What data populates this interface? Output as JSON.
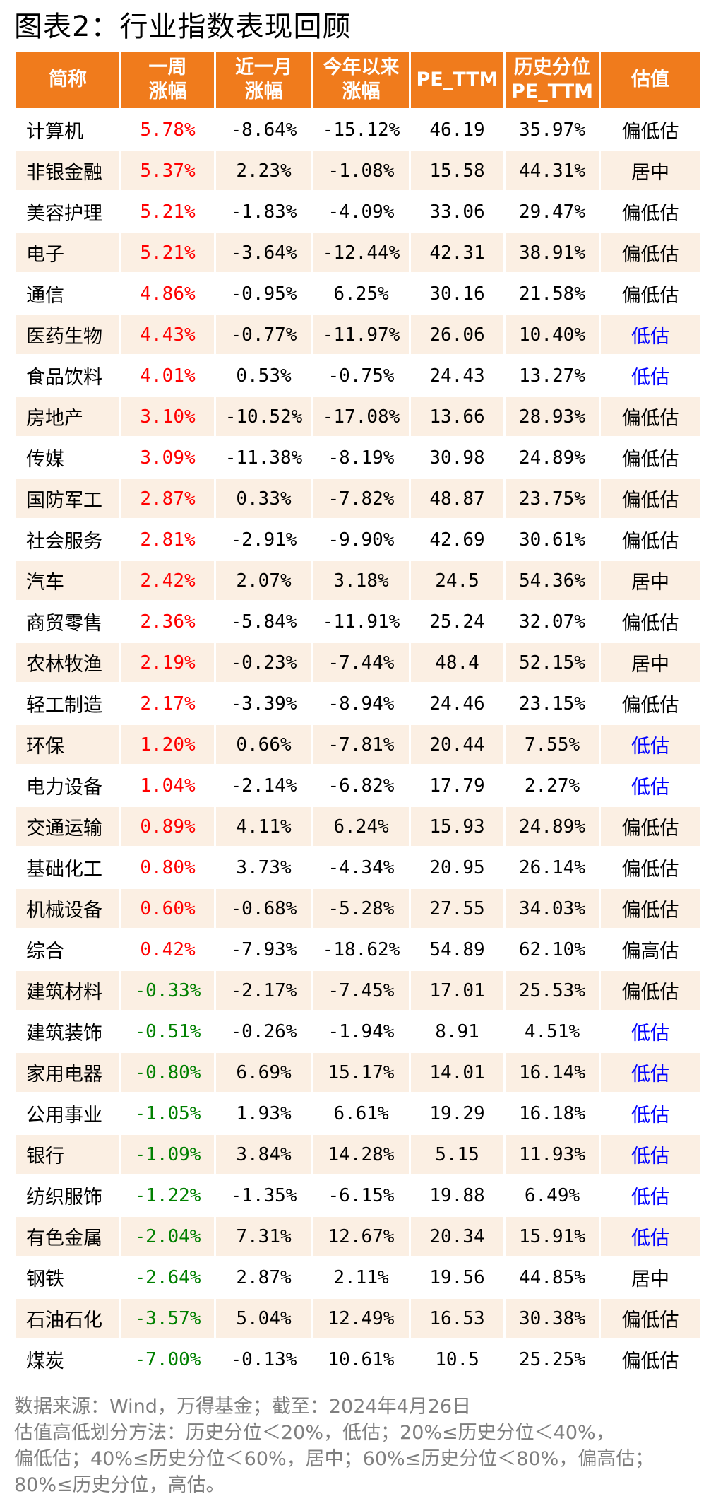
{
  "title": "图表2：行业指数表现回顾",
  "table": {
    "headers": [
      [
        "简称"
      ],
      [
        "一周",
        "涨幅"
      ],
      [
        "近一月",
        "涨幅"
      ],
      [
        "今年以来",
        "涨幅"
      ],
      [
        "PE_TTM"
      ],
      [
        "历史分位",
        "PE_TTM"
      ],
      [
        "估值"
      ]
    ],
    "rows": [
      {
        "name": "计算机",
        "week": "5.78%",
        "month": "-8.64%",
        "ytd": "-15.12%",
        "pe": "46.19",
        "pct": "35.97%",
        "val": "偏低估",
        "dir": "pos",
        "valcolor": "black"
      },
      {
        "name": "非银金融",
        "week": "5.37%",
        "month": "2.23%",
        "ytd": "-1.08%",
        "pe": "15.58",
        "pct": "44.31%",
        "val": "居中",
        "dir": "pos",
        "valcolor": "black"
      },
      {
        "name": "美容护理",
        "week": "5.21%",
        "month": "-1.83%",
        "ytd": "-4.09%",
        "pe": "33.06",
        "pct": "29.47%",
        "val": "偏低估",
        "dir": "pos",
        "valcolor": "black"
      },
      {
        "name": "电子",
        "week": "5.21%",
        "month": "-3.64%",
        "ytd": "-12.44%",
        "pe": "42.31",
        "pct": "38.91%",
        "val": "偏低估",
        "dir": "pos",
        "valcolor": "black"
      },
      {
        "name": "通信",
        "week": "4.86%",
        "month": "-0.95%",
        "ytd": "6.25%",
        "pe": "30.16",
        "pct": "21.58%",
        "val": "偏低估",
        "dir": "pos",
        "valcolor": "black"
      },
      {
        "name": "医药生物",
        "week": "4.43%",
        "month": "-0.77%",
        "ytd": "-11.97%",
        "pe": "26.06",
        "pct": "10.40%",
        "val": "低估",
        "dir": "pos",
        "valcolor": "blue"
      },
      {
        "name": "食品饮料",
        "week": "4.01%",
        "month": "0.53%",
        "ytd": "-0.75%",
        "pe": "24.43",
        "pct": "13.27%",
        "val": "低估",
        "dir": "pos",
        "valcolor": "blue"
      },
      {
        "name": "房地产",
        "week": "3.10%",
        "month": "-10.52%",
        "ytd": "-17.08%",
        "pe": "13.66",
        "pct": "28.93%",
        "val": "偏低估",
        "dir": "pos",
        "valcolor": "black"
      },
      {
        "name": "传媒",
        "week": "3.09%",
        "month": "-11.38%",
        "ytd": "-8.19%",
        "pe": "30.98",
        "pct": "24.89%",
        "val": "偏低估",
        "dir": "pos",
        "valcolor": "black"
      },
      {
        "name": "国防军工",
        "week": "2.87%",
        "month": "0.33%",
        "ytd": "-7.82%",
        "pe": "48.87",
        "pct": "23.75%",
        "val": "偏低估",
        "dir": "pos",
        "valcolor": "black"
      },
      {
        "name": "社会服务",
        "week": "2.81%",
        "month": "-2.91%",
        "ytd": "-9.90%",
        "pe": "42.69",
        "pct": "30.61%",
        "val": "偏低估",
        "dir": "pos",
        "valcolor": "black"
      },
      {
        "name": "汽车",
        "week": "2.42%",
        "month": "2.07%",
        "ytd": "3.18%",
        "pe": "24.5",
        "pct": "54.36%",
        "val": "居中",
        "dir": "pos",
        "valcolor": "black"
      },
      {
        "name": "商贸零售",
        "week": "2.36%",
        "month": "-5.84%",
        "ytd": "-11.91%",
        "pe": "25.24",
        "pct": "32.07%",
        "val": "偏低估",
        "dir": "pos",
        "valcolor": "black"
      },
      {
        "name": "农林牧渔",
        "week": "2.19%",
        "month": "-0.23%",
        "ytd": "-7.44%",
        "pe": "48.4",
        "pct": "52.15%",
        "val": "居中",
        "dir": "pos",
        "valcolor": "black"
      },
      {
        "name": "轻工制造",
        "week": "2.17%",
        "month": "-3.39%",
        "ytd": "-8.94%",
        "pe": "24.46",
        "pct": "23.15%",
        "val": "偏低估",
        "dir": "pos",
        "valcolor": "black"
      },
      {
        "name": "环保",
        "week": "1.20%",
        "month": "0.66%",
        "ytd": "-7.81%",
        "pe": "20.44",
        "pct": "7.55%",
        "val": "低估",
        "dir": "pos",
        "valcolor": "blue"
      },
      {
        "name": "电力设备",
        "week": "1.04%",
        "month": "-2.14%",
        "ytd": "-6.82%",
        "pe": "17.79",
        "pct": "2.27%",
        "val": "低估",
        "dir": "pos",
        "valcolor": "blue"
      },
      {
        "name": "交通运输",
        "week": "0.89%",
        "month": "4.11%",
        "ytd": "6.24%",
        "pe": "15.93",
        "pct": "24.89%",
        "val": "偏低估",
        "dir": "pos",
        "valcolor": "black"
      },
      {
        "name": "基础化工",
        "week": "0.80%",
        "month": "3.73%",
        "ytd": "-4.34%",
        "pe": "20.95",
        "pct": "26.14%",
        "val": "偏低估",
        "dir": "pos",
        "valcolor": "black"
      },
      {
        "name": "机械设备",
        "week": "0.60%",
        "month": "-0.68%",
        "ytd": "-5.28%",
        "pe": "27.55",
        "pct": "34.03%",
        "val": "偏低估",
        "dir": "pos",
        "valcolor": "black"
      },
      {
        "name": "综合",
        "week": "0.42%",
        "month": "-7.93%",
        "ytd": "-18.62%",
        "pe": "54.89",
        "pct": "62.10%",
        "val": "偏高估",
        "dir": "pos",
        "valcolor": "black"
      },
      {
        "name": "建筑材料",
        "week": "-0.33%",
        "month": "-2.17%",
        "ytd": "-7.45%",
        "pe": "17.01",
        "pct": "25.53%",
        "val": "偏低估",
        "dir": "neg",
        "valcolor": "black"
      },
      {
        "name": "建筑装饰",
        "week": "-0.51%",
        "month": "-0.26%",
        "ytd": "-1.94%",
        "pe": "8.91",
        "pct": "4.51%",
        "val": "低估",
        "dir": "neg",
        "valcolor": "blue"
      },
      {
        "name": "家用电器",
        "week": "-0.80%",
        "month": "6.69%",
        "ytd": "15.17%",
        "pe": "14.01",
        "pct": "16.14%",
        "val": "低估",
        "dir": "neg",
        "valcolor": "blue"
      },
      {
        "name": "公用事业",
        "week": "-1.05%",
        "month": "1.93%",
        "ytd": "6.61%",
        "pe": "19.29",
        "pct": "16.18%",
        "val": "低估",
        "dir": "neg",
        "valcolor": "blue"
      },
      {
        "name": "银行",
        "week": "-1.09%",
        "month": "3.84%",
        "ytd": "14.28%",
        "pe": "5.15",
        "pct": "11.93%",
        "val": "低估",
        "dir": "neg",
        "valcolor": "blue"
      },
      {
        "name": "纺织服饰",
        "week": "-1.22%",
        "month": "-1.35%",
        "ytd": "-6.15%",
        "pe": "19.88",
        "pct": "6.49%",
        "val": "低估",
        "dir": "neg",
        "valcolor": "blue"
      },
      {
        "name": "有色金属",
        "week": "-2.04%",
        "month": "7.31%",
        "ytd": "12.67%",
        "pe": "20.34",
        "pct": "15.91%",
        "val": "低估",
        "dir": "neg",
        "valcolor": "blue"
      },
      {
        "name": "钢铁",
        "week": "-2.64%",
        "month": "2.87%",
        "ytd": "2.11%",
        "pe": "19.56",
        "pct": "44.85%",
        "val": "居中",
        "dir": "neg",
        "valcolor": "black"
      },
      {
        "name": "石油石化",
        "week": "-3.57%",
        "month": "5.04%",
        "ytd": "12.49%",
        "pe": "16.53",
        "pct": "30.38%",
        "val": "偏低估",
        "dir": "neg",
        "valcolor": "black"
      },
      {
        "name": "煤炭",
        "week": "-7.00%",
        "month": "-0.13%",
        "ytd": "10.61%",
        "pe": "10.5",
        "pct": "25.25%",
        "val": "偏低估",
        "dir": "neg",
        "valcolor": "black"
      }
    ]
  },
  "footer": {
    "lines": [
      "数据来源：Wind，万得基金；截至：2024年4月26日",
      "估值高低划分方法：历史分位＜20%，低估；20%≤历史分位＜40%，",
      "偏低估；40%≤历史分位＜60%，居中；60%≤历史分位＜80%，偏高估；",
      "80%≤历史分位，高估。"
    ]
  },
  "colors": {
    "header_bg": "#f07b1c",
    "header_text": "#ffffff",
    "alt_row_bg": "#fbefe3",
    "positive": "#ff0000",
    "negative": "#008000",
    "undervalued": "#0000ff",
    "source_text": "#7f7f7f"
  }
}
